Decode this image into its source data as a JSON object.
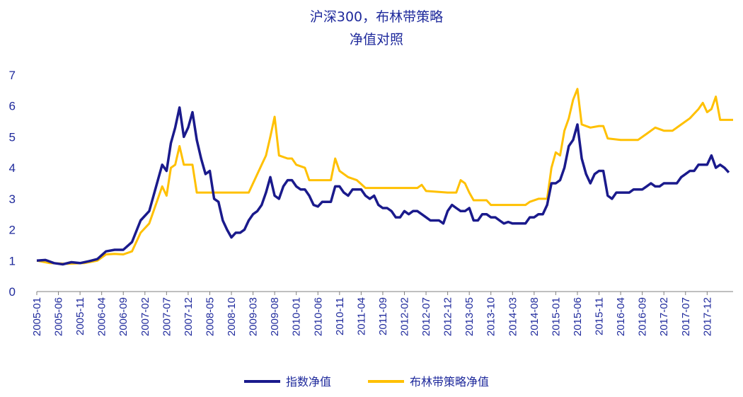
{
  "chart_data": {
    "type": "line",
    "title_line1": "沪深300，布林带策略",
    "title_line2": "净值对照",
    "ylim": [
      0,
      7
    ],
    "y_ticks": [
      0,
      1,
      2,
      3,
      4,
      5,
      6,
      7
    ],
    "x_tick_labels": [
      "2005-01",
      "2005-06",
      "2005-11",
      "2006-04",
      "2006-09",
      "2007-02",
      "2007-07",
      "2007-12",
      "2008-05",
      "2008-10",
      "2009-03",
      "2009-08",
      "2010-01",
      "2010-06",
      "2010-11",
      "2011-04",
      "2011-09",
      "2012-02",
      "2012-07",
      "2012-12",
      "2013-05",
      "2013-10",
      "2014-03",
      "2014-08",
      "2015-01",
      "2015-06",
      "2015-11",
      "2016-04",
      "2016-09",
      "2017-02",
      "2017-07",
      "2017-12"
    ],
    "x_range": [
      "2005-01",
      "2018-06"
    ],
    "legend_position": "bottom",
    "grid": false,
    "series": [
      {
        "name": "指数净值",
        "color": "#1a1a8c",
        "points": [
          [
            "2005-01",
            1.0
          ],
          [
            "2005-03",
            1.02
          ],
          [
            "2005-05",
            0.92
          ],
          [
            "2005-07",
            0.88
          ],
          [
            "2005-09",
            0.95
          ],
          [
            "2005-11",
            0.92
          ],
          [
            "2006-01",
            0.98
          ],
          [
            "2006-03",
            1.05
          ],
          [
            "2006-05",
            1.3
          ],
          [
            "2006-07",
            1.35
          ],
          [
            "2006-09",
            1.35
          ],
          [
            "2006-11",
            1.6
          ],
          [
            "2007-01",
            2.3
          ],
          [
            "2007-03",
            2.6
          ],
          [
            "2007-05",
            3.6
          ],
          [
            "2007-06",
            4.1
          ],
          [
            "2007-07",
            3.9
          ],
          [
            "2007-08",
            4.8
          ],
          [
            "2007-09",
            5.3
          ],
          [
            "2007-10",
            5.95
          ],
          [
            "2007-11",
            5.0
          ],
          [
            "2007-12",
            5.3
          ],
          [
            "2008-01",
            5.8
          ],
          [
            "2008-02",
            4.9
          ],
          [
            "2008-03",
            4.3
          ],
          [
            "2008-04",
            3.8
          ],
          [
            "2008-05",
            3.9
          ],
          [
            "2008-06",
            3.0
          ],
          [
            "2008-07",
            2.9
          ],
          [
            "2008-08",
            2.3
          ],
          [
            "2008-09",
            2.0
          ],
          [
            "2008-10",
            1.75
          ],
          [
            "2008-11",
            1.9
          ],
          [
            "2008-12",
            1.9
          ],
          [
            "2009-01",
            2.0
          ],
          [
            "2009-02",
            2.3
          ],
          [
            "2009-03",
            2.5
          ],
          [
            "2009-04",
            2.6
          ],
          [
            "2009-05",
            2.8
          ],
          [
            "2009-06",
            3.2
          ],
          [
            "2009-07",
            3.7
          ],
          [
            "2009-08",
            3.1
          ],
          [
            "2009-09",
            3.0
          ],
          [
            "2009-10",
            3.4
          ],
          [
            "2009-11",
            3.6
          ],
          [
            "2009-12",
            3.6
          ],
          [
            "2010-01",
            3.4
          ],
          [
            "2010-02",
            3.3
          ],
          [
            "2010-03",
            3.3
          ],
          [
            "2010-04",
            3.1
          ],
          [
            "2010-05",
            2.8
          ],
          [
            "2010-06",
            2.75
          ],
          [
            "2010-07",
            2.9
          ],
          [
            "2010-08",
            2.9
          ],
          [
            "2010-09",
            2.9
          ],
          [
            "2010-10",
            3.4
          ],
          [
            "2010-11",
            3.4
          ],
          [
            "2010-12",
            3.2
          ],
          [
            "2011-01",
            3.1
          ],
          [
            "2011-02",
            3.3
          ],
          [
            "2011-03",
            3.3
          ],
          [
            "2011-04",
            3.3
          ],
          [
            "2011-05",
            3.1
          ],
          [
            "2011-06",
            3.0
          ],
          [
            "2011-07",
            3.1
          ],
          [
            "2011-08",
            2.8
          ],
          [
            "2011-09",
            2.7
          ],
          [
            "2011-10",
            2.7
          ],
          [
            "2011-11",
            2.6
          ],
          [
            "2011-12",
            2.4
          ],
          [
            "2012-01",
            2.4
          ],
          [
            "2012-02",
            2.6
          ],
          [
            "2012-03",
            2.5
          ],
          [
            "2012-04",
            2.6
          ],
          [
            "2012-05",
            2.6
          ],
          [
            "2012-06",
            2.5
          ],
          [
            "2012-07",
            2.4
          ],
          [
            "2012-08",
            2.3
          ],
          [
            "2012-09",
            2.3
          ],
          [
            "2012-10",
            2.3
          ],
          [
            "2012-11",
            2.2
          ],
          [
            "2012-12",
            2.6
          ],
          [
            "2013-01",
            2.8
          ],
          [
            "2013-02",
            2.7
          ],
          [
            "2013-03",
            2.6
          ],
          [
            "2013-04",
            2.6
          ],
          [
            "2013-05",
            2.7
          ],
          [
            "2013-06",
            2.3
          ],
          [
            "2013-07",
            2.3
          ],
          [
            "2013-08",
            2.5
          ],
          [
            "2013-09",
            2.5
          ],
          [
            "2013-10",
            2.4
          ],
          [
            "2013-11",
            2.4
          ],
          [
            "2013-12",
            2.3
          ],
          [
            "2014-01",
            2.2
          ],
          [
            "2014-02",
            2.25
          ],
          [
            "2014-03",
            2.2
          ],
          [
            "2014-04",
            2.2
          ],
          [
            "2014-05",
            2.2
          ],
          [
            "2014-06",
            2.2
          ],
          [
            "2014-07",
            2.4
          ],
          [
            "2014-08",
            2.4
          ],
          [
            "2014-09",
            2.5
          ],
          [
            "2014-10",
            2.5
          ],
          [
            "2014-11",
            2.8
          ],
          [
            "2014-12",
            3.5
          ],
          [
            "2015-01",
            3.5
          ],
          [
            "2015-02",
            3.6
          ],
          [
            "2015-03",
            4.0
          ],
          [
            "2015-04",
            4.7
          ],
          [
            "2015-05",
            4.9
          ],
          [
            "2015-06",
            5.4
          ],
          [
            "2015-07",
            4.3
          ],
          [
            "2015-08",
            3.8
          ],
          [
            "2015-09",
            3.5
          ],
          [
            "2015-10",
            3.8
          ],
          [
            "2015-11",
            3.9
          ],
          [
            "2015-12",
            3.9
          ],
          [
            "2016-01",
            3.1
          ],
          [
            "2016-02",
            3.0
          ],
          [
            "2016-03",
            3.2
          ],
          [
            "2016-04",
            3.2
          ],
          [
            "2016-05",
            3.2
          ],
          [
            "2016-06",
            3.2
          ],
          [
            "2016-07",
            3.3
          ],
          [
            "2016-08",
            3.3
          ],
          [
            "2016-09",
            3.3
          ],
          [
            "2016-10",
            3.4
          ],
          [
            "2016-11",
            3.5
          ],
          [
            "2016-12",
            3.4
          ],
          [
            "2017-01",
            3.4
          ],
          [
            "2017-02",
            3.5
          ],
          [
            "2017-03",
            3.5
          ],
          [
            "2017-04",
            3.5
          ],
          [
            "2017-05",
            3.5
          ],
          [
            "2017-06",
            3.7
          ],
          [
            "2017-07",
            3.8
          ],
          [
            "2017-08",
            3.9
          ],
          [
            "2017-09",
            3.9
          ],
          [
            "2017-10",
            4.1
          ],
          [
            "2017-11",
            4.1
          ],
          [
            "2017-12",
            4.1
          ],
          [
            "2018-01",
            4.4
          ],
          [
            "2018-02",
            4.0
          ],
          [
            "2018-03",
            4.1
          ],
          [
            "2018-04",
            4.0
          ],
          [
            "2018-05",
            3.85
          ]
        ]
      },
      {
        "name": "布林带策略净值",
        "color": "#ffc000",
        "points": [
          [
            "2005-01",
            1.0
          ],
          [
            "2005-04",
            0.92
          ],
          [
            "2005-08",
            0.9
          ],
          [
            "2005-12",
            0.92
          ],
          [
            "2006-03",
            1.0
          ],
          [
            "2006-05",
            1.2
          ],
          [
            "2006-07",
            1.22
          ],
          [
            "2006-09",
            1.2
          ],
          [
            "2006-11",
            1.3
          ],
          [
            "2007-01",
            1.9
          ],
          [
            "2007-03",
            2.2
          ],
          [
            "2007-05",
            3.0
          ],
          [
            "2007-06",
            3.4
          ],
          [
            "2007-07",
            3.1
          ],
          [
            "2007-08",
            4.0
          ],
          [
            "2007-09",
            4.1
          ],
          [
            "2007-10",
            4.7
          ],
          [
            "2007-11",
            4.1
          ],
          [
            "2008-01",
            4.1
          ],
          [
            "2008-02",
            3.2
          ],
          [
            "2008-06",
            3.2
          ],
          [
            "2008-12",
            3.2
          ],
          [
            "2009-02",
            3.2
          ],
          [
            "2009-03",
            3.5
          ],
          [
            "2009-05",
            4.1
          ],
          [
            "2009-06",
            4.4
          ],
          [
            "2009-07",
            5.0
          ],
          [
            "2009-08",
            5.65
          ],
          [
            "2009-09",
            4.4
          ],
          [
            "2009-11",
            4.3
          ],
          [
            "2009-12",
            4.3
          ],
          [
            "2010-01",
            4.1
          ],
          [
            "2010-03",
            4.0
          ],
          [
            "2010-04",
            3.6
          ],
          [
            "2010-06",
            3.6
          ],
          [
            "2010-09",
            3.6
          ],
          [
            "2010-10",
            4.3
          ],
          [
            "2010-11",
            3.9
          ],
          [
            "2011-01",
            3.7
          ],
          [
            "2011-03",
            3.6
          ],
          [
            "2011-05",
            3.35
          ],
          [
            "2011-09",
            3.35
          ],
          [
            "2012-01",
            3.35
          ],
          [
            "2012-05",
            3.35
          ],
          [
            "2012-06",
            3.45
          ],
          [
            "2012-07",
            3.25
          ],
          [
            "2012-12",
            3.2
          ],
          [
            "2013-02",
            3.2
          ],
          [
            "2013-03",
            3.6
          ],
          [
            "2013-04",
            3.5
          ],
          [
            "2013-05",
            3.2
          ],
          [
            "2013-06",
            2.95
          ],
          [
            "2013-09",
            2.95
          ],
          [
            "2013-10",
            2.8
          ],
          [
            "2014-01",
            2.8
          ],
          [
            "2014-06",
            2.8
          ],
          [
            "2014-07",
            2.9
          ],
          [
            "2014-09",
            3.0
          ],
          [
            "2014-11",
            3.0
          ],
          [
            "2014-12",
            4.0
          ],
          [
            "2015-01",
            4.5
          ],
          [
            "2015-02",
            4.4
          ],
          [
            "2015-03",
            5.2
          ],
          [
            "2015-04",
            5.6
          ],
          [
            "2015-05",
            6.2
          ],
          [
            "2015-06",
            6.55
          ],
          [
            "2015-07",
            5.4
          ],
          [
            "2015-09",
            5.3
          ],
          [
            "2015-11",
            5.35
          ],
          [
            "2015-12",
            5.35
          ],
          [
            "2016-01",
            4.95
          ],
          [
            "2016-04",
            4.9
          ],
          [
            "2016-08",
            4.9
          ],
          [
            "2016-10",
            5.1
          ],
          [
            "2016-12",
            5.3
          ],
          [
            "2017-02",
            5.2
          ],
          [
            "2017-04",
            5.2
          ],
          [
            "2017-06",
            5.4
          ],
          [
            "2017-08",
            5.6
          ],
          [
            "2017-10",
            5.9
          ],
          [
            "2017-11",
            6.1
          ],
          [
            "2017-12",
            5.8
          ],
          [
            "2018-01",
            5.9
          ],
          [
            "2018-02",
            6.3
          ],
          [
            "2018-03",
            5.55
          ],
          [
            "2018-06",
            5.55
          ]
        ]
      }
    ]
  }
}
